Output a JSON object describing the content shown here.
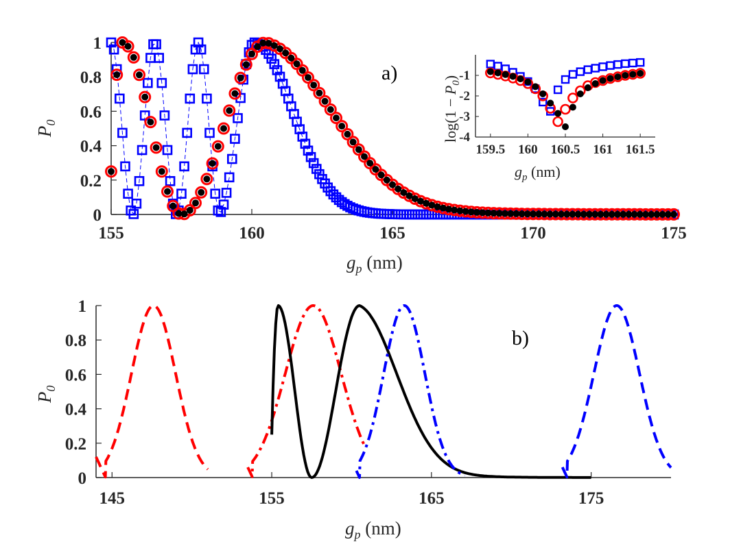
{
  "chart_data": [
    {
      "panel": "a)",
      "type": "scatter",
      "xlabel": "g_p (nm)",
      "ylabel": "P_0",
      "xlim": [
        155,
        175
      ],
      "ylim": [
        0,
        1
      ],
      "xticks": [
        "155",
        "160",
        "165",
        "170",
        "175"
      ],
      "yticks": [
        "0",
        "0.2",
        "0.4",
        "0.6",
        "0.8",
        "1"
      ],
      "series": [
        {
          "name": "blue-squares",
          "marker": "square",
          "color": "#0000ff",
          "connected": "dashed",
          "model": "blue_fast"
        },
        {
          "name": "red-circles",
          "marker": "circle-open",
          "color": "#ff0000",
          "model": "main"
        },
        {
          "name": "black-dots",
          "marker": "circle-filled",
          "color": "#000000",
          "model": "main"
        }
      ]
    },
    {
      "panel": "inset",
      "type": "scatter",
      "xlabel": "g_p (nm)",
      "ylabel": "log(1 − P_0)",
      "xlim": [
        159.3,
        161.7
      ],
      "ylim": [
        -4,
        0
      ],
      "xticks": [
        "159.5",
        "160",
        "160.5",
        "161",
        "161.5"
      ],
      "yticks": [
        "-1",
        "-2",
        "-3",
        "-4"
      ],
      "series": [
        {
          "name": "blue-squares",
          "color": "#0000ff",
          "x": [
            159.5,
            159.6,
            159.7,
            159.8,
            159.9,
            160.0,
            160.1,
            160.2,
            160.3,
            160.4,
            160.5,
            160.6,
            160.7,
            160.8,
            160.9,
            161.0,
            161.1,
            161.2,
            161.3,
            161.4,
            161.5
          ],
          "y": [
            -0.45,
            -0.55,
            -0.68,
            -0.85,
            -1.05,
            -1.3,
            -1.65,
            -2.3,
            -2.75,
            -1.7,
            -1.2,
            -0.95,
            -0.82,
            -0.72,
            -0.65,
            -0.58,
            -0.52,
            -0.47,
            -0.43,
            -0.4,
            -0.37
          ]
        },
        {
          "name": "red-circles",
          "color": "#ff0000",
          "x": [
            159.5,
            159.6,
            159.7,
            159.8,
            159.9,
            160.0,
            160.1,
            160.2,
            160.3,
            160.4,
            160.5,
            160.6,
            160.7,
            160.8,
            160.9,
            161.0,
            161.1,
            161.2,
            161.3,
            161.4,
            161.5
          ],
          "y": [
            -0.88,
            -0.95,
            -1.03,
            -1.13,
            -1.25,
            -1.4,
            -1.65,
            -2.0,
            -2.6,
            -3.25,
            -2.65,
            -2.1,
            -1.75,
            -1.5,
            -1.35,
            -1.25,
            -1.15,
            -1.07,
            -1.0,
            -0.95,
            -0.9
          ]
        },
        {
          "name": "black-dots",
          "color": "#000000",
          "x": [
            159.5,
            159.6,
            159.7,
            159.8,
            159.9,
            160.0,
            160.1,
            160.2,
            160.3,
            160.4,
            160.5,
            160.6,
            160.7,
            160.8,
            160.9,
            161.0,
            161.1,
            161.2,
            161.3,
            161.4,
            161.5
          ],
          "y": [
            -0.82,
            -0.88,
            -0.96,
            -1.05,
            -1.17,
            -1.32,
            -1.55,
            -1.9,
            -2.35,
            -2.85,
            -3.5,
            -2.55,
            -1.9,
            -1.6,
            -1.4,
            -1.25,
            -1.15,
            -1.07,
            -1.0,
            -0.95,
            -0.9
          ]
        }
      ]
    },
    {
      "panel": "b)",
      "type": "line",
      "xlabel": "g_p (nm)",
      "ylabel": "P_0",
      "xlim": [
        144,
        180
      ],
      "ylim": [
        0,
        1
      ],
      "xticks": [
        "145",
        "155",
        "165",
        "175"
      ],
      "yticks": [
        "0",
        "0.2",
        "0.4",
        "0.6",
        "0.8",
        "1"
      ],
      "series": [
        {
          "name": "red-dashed",
          "color": "#ff0000",
          "dash": "dashed",
          "range": [
            144,
            151
          ],
          "peak": 147.6,
          "zero": 144.6
        },
        {
          "name": "red-dashdot",
          "color": "#ff0000",
          "dash": "dashdot",
          "range": [
            153.5,
            160.8
          ],
          "peak": 157.6,
          "zero": 153.8
        },
        {
          "name": "black-solid",
          "color": "#000000",
          "dash": "solid",
          "range": [
            155,
            175
          ],
          "model": "main"
        },
        {
          "name": "blue-dashdot",
          "color": "#0000ff",
          "dash": "dashdot",
          "range": [
            160.3,
            167.1
          ],
          "peak": 163.3,
          "zero": 160.5
        },
        {
          "name": "blue-dashed",
          "color": "#0000ff",
          "dash": "dashed",
          "range": [
            173.2,
            180
          ],
          "peak": 176.6,
          "zero": 173.5
        }
      ]
    }
  ],
  "labels": {
    "panel_a": "a)",
    "panel_b": "b)",
    "xlabel_g": "g",
    "xlabel_sub": "p",
    "xlabel_unit": " (nm)",
    "ylabel_P": "P",
    "ylabel_sub": "0",
    "inset_ylabel_pre": "log(1 − ",
    "inset_ylabel_P": "P",
    "inset_ylabel_sub": "0",
    "inset_ylabel_post": ")"
  }
}
